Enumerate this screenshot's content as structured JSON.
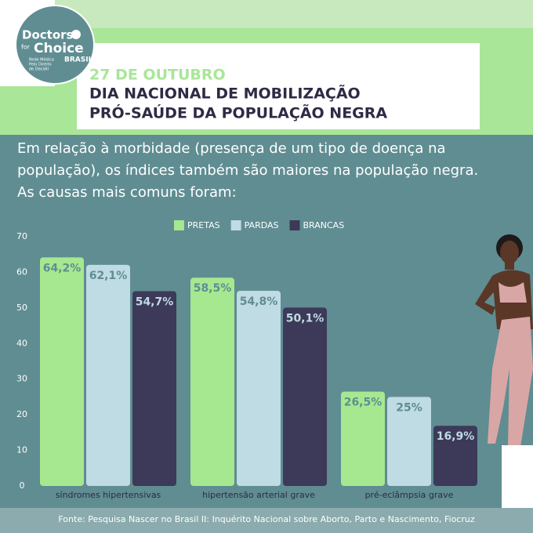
{
  "header": {
    "logo": {
      "word1": "Doctors",
      "word2": "for",
      "word3": "Choice",
      "word4": "BRASIL",
      "tagline": [
        "Rede Médica",
        "Pelo Direito",
        "de Decidir"
      ]
    },
    "date": "27 DE OUTUBRO",
    "title": [
      "DIA NACIONAL DE MOBILIZAÇÃO",
      "PRÓ-SAÚDE DA POPULAÇÃO NEGRA"
    ]
  },
  "intro": [
    "Em relação à morbidade (presença de um tipo de doença na",
    "população), os índices também são maiores na população negra.",
    "As causas mais comuns foram:"
  ],
  "chart_data": {
    "type": "bar",
    "categories": [
      "síndromes hipertensivas",
      "hipertensão arterial grave",
      "pré-eclâmpsia grave"
    ],
    "series": [
      {
        "name": "PRETAS",
        "color": "#a6e88f",
        "values": [
          64.2,
          58.5,
          26.5
        ],
        "value_labels": [
          "64,2%",
          "58,5%",
          "26,5%"
        ]
      },
      {
        "name": "PARDAS",
        "color": "#bfdbe4",
        "values": [
          62.1,
          54.8,
          25
        ],
        "value_labels": [
          "62,1%",
          "54,8%",
          "25%"
        ]
      },
      {
        "name": "BRANCAS",
        "color": "#3c3a58",
        "values": [
          54.7,
          50.1,
          16.9
        ],
        "value_labels": [
          "54,7%",
          "50,1%",
          "16,9%"
        ]
      }
    ],
    "ylim": [
      0,
      70
    ],
    "yticks": [
      0,
      10,
      20,
      30,
      40,
      50,
      60,
      70
    ],
    "legend": "top"
  },
  "source": "Fonte: Pesquisa Nascer no Brasil II: Inquérito Nacional sobre Aborto, Parto e Nascimento, Fiocruz"
}
